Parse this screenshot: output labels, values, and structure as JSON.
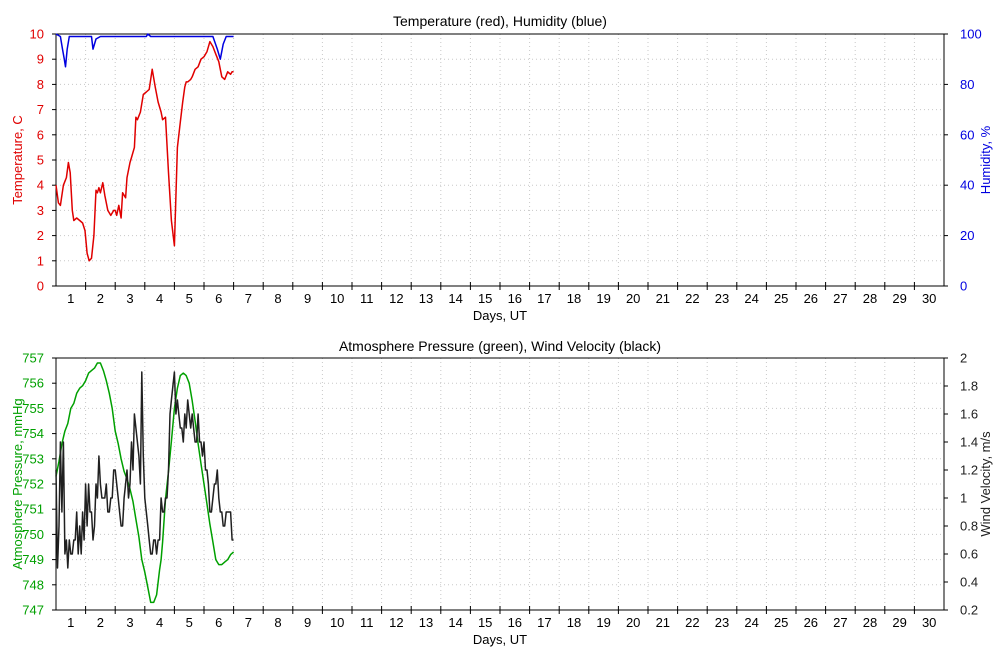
{
  "chart_data": [
    {
      "type": "line",
      "title": "Temperature (red), Humidity (blue)",
      "xlabel": "Days, UT",
      "ylabel": "Temperature, C",
      "ylabel_right": "Humidity, %",
      "xlim": [
        0,
        30
      ],
      "ylim": [
        0,
        10
      ],
      "ylim_right": [
        0,
        100
      ],
      "grid": true,
      "x_ticks": [
        "1",
        "2",
        "3",
        "4",
        "5",
        "6",
        "7",
        "8",
        "9",
        "10",
        "11",
        "12",
        "13",
        "14",
        "15",
        "16",
        "17",
        "18",
        "19",
        "20",
        "21",
        "22",
        "23",
        "24",
        "25",
        "26",
        "27",
        "28",
        "29",
        "30"
      ],
      "y_ticks": [
        0,
        1,
        2,
        3,
        4,
        5,
        6,
        7,
        8,
        9,
        10
      ],
      "y_ticks_right": [
        0,
        20,
        40,
        60,
        80,
        100
      ],
      "colors": {
        "left": "#e00000",
        "right": "#0000e0"
      },
      "series": [
        {
          "name": "Temperature (red)",
          "axis": "left",
          "color": "#e00000",
          "x": [
            0.0,
            0.08,
            0.15,
            0.25,
            0.35,
            0.42,
            0.48,
            0.55,
            0.6,
            0.7,
            0.8,
            0.9,
            0.98,
            1.05,
            1.12,
            1.2,
            1.28,
            1.35,
            1.4,
            1.45,
            1.5,
            1.58,
            1.65,
            1.75,
            1.85,
            1.95,
            2.0,
            2.05,
            2.12,
            2.2,
            2.25,
            2.35,
            2.4,
            2.5,
            2.55,
            2.65,
            2.7,
            2.75,
            2.85,
            2.95,
            3.05,
            3.15,
            3.25,
            3.35,
            3.45,
            3.55,
            3.6,
            3.7,
            3.8,
            3.9,
            4.0,
            4.1,
            4.2,
            4.28,
            4.35,
            4.4,
            4.45,
            4.55,
            4.6,
            4.7,
            4.8,
            4.9,
            5.0,
            5.1,
            5.2,
            5.3,
            5.4,
            5.5,
            5.55,
            5.6,
            5.7,
            5.8,
            5.9,
            5.95,
            6.0
          ],
          "y": [
            4.0,
            3.3,
            3.2,
            4.0,
            4.3,
            4.9,
            4.5,
            3.0,
            2.6,
            2.7,
            2.6,
            2.5,
            2.2,
            1.3,
            1.0,
            1.1,
            2.0,
            3.8,
            3.7,
            3.9,
            3.7,
            4.1,
            3.6,
            3.0,
            2.8,
            3.0,
            3.0,
            2.8,
            3.2,
            2.7,
            3.7,
            3.5,
            4.3,
            4.9,
            5.1,
            5.5,
            6.7,
            6.6,
            6.9,
            7.6,
            7.7,
            7.8,
            8.6,
            7.9,
            7.3,
            6.9,
            6.6,
            6.7,
            4.5,
            2.6,
            1.6,
            5.5,
            6.5,
            7.3,
            7.9,
            8.1,
            8.1,
            8.2,
            8.3,
            8.6,
            8.7,
            9.0,
            9.1,
            9.3,
            9.7,
            9.5,
            9.2,
            8.9,
            8.6,
            8.3,
            8.2,
            8.5,
            8.4,
            8.5,
            8.5
          ]
        },
        {
          "name": "Humidity (blue)",
          "axis": "right",
          "color": "#0000e0",
          "x": [
            0.0,
            0.15,
            0.22,
            0.28,
            0.32,
            0.38,
            0.45,
            0.55,
            1.0,
            1.05,
            1.1,
            1.15,
            1.2,
            1.25,
            1.35,
            1.5,
            1.9,
            2.0,
            2.05,
            2.1,
            2.15,
            2.25,
            2.35,
            2.5,
            2.75,
            3.0,
            3.05,
            3.1,
            3.2,
            4.5,
            4.8,
            5.0,
            5.3,
            5.45,
            5.55,
            5.65,
            5.75,
            5.8,
            5.9,
            5.95,
            6.0
          ],
          "y": [
            100,
            99,
            94,
            90,
            87,
            94,
            99,
            99,
            99,
            99,
            99,
            99,
            99,
            94,
            98,
            99,
            99,
            99,
            99,
            99,
            99,
            99,
            99,
            99,
            99,
            99,
            99,
            100,
            99,
            99,
            99,
            99,
            99,
            94,
            90,
            96,
            99,
            99,
            99,
            99,
            99
          ]
        }
      ]
    },
    {
      "type": "line",
      "title": "Atmosphere Pressure (green), Wind Velocity (black)",
      "xlabel": "Days, UT",
      "ylabel": "Atmosphere Pressure, mmHg",
      "ylabel_right": "Wind Velocity, m/s",
      "xlim": [
        0,
        30
      ],
      "ylim": [
        747,
        757
      ],
      "ylim_right": [
        0.2,
        2
      ],
      "grid": true,
      "x_ticks": [
        "1",
        "2",
        "3",
        "4",
        "5",
        "6",
        "7",
        "8",
        "9",
        "10",
        "11",
        "12",
        "13",
        "14",
        "15",
        "16",
        "17",
        "18",
        "19",
        "20",
        "21",
        "22",
        "23",
        "24",
        "25",
        "26",
        "27",
        "28",
        "29",
        "30"
      ],
      "y_ticks": [
        747,
        748,
        749,
        750,
        751,
        752,
        753,
        754,
        755,
        756,
        757
      ],
      "y_ticks_right": [
        "0.2",
        "0.4",
        "0.6",
        "0.8",
        "1",
        "1.2",
        "1.4",
        "1.6",
        "1.8",
        "2"
      ],
      "colors": {
        "left": "#00a000",
        "right": "#202020"
      },
      "series": [
        {
          "name": "Atmosphere Pressure (green)",
          "axis": "left",
          "color": "#00a000",
          "x": [
            0.0,
            0.1,
            0.2,
            0.3,
            0.4,
            0.5,
            0.6,
            0.7,
            0.8,
            0.9,
            1.0,
            1.1,
            1.2,
            1.3,
            1.4,
            1.5,
            1.6,
            1.7,
            1.8,
            1.9,
            2.0,
            2.1,
            2.2,
            2.3,
            2.4,
            2.5,
            2.6,
            2.7,
            2.8,
            2.9,
            3.0,
            3.1,
            3.2,
            3.3,
            3.4,
            3.5,
            3.55,
            3.6,
            3.7,
            3.8,
            3.9,
            4.0,
            4.1,
            4.2,
            4.3,
            4.4,
            4.5,
            4.6,
            4.7,
            4.8,
            4.9,
            5.0,
            5.1,
            5.2,
            5.3,
            5.4,
            5.5,
            5.6,
            5.7,
            5.8,
            5.9,
            6.0
          ],
          "y": [
            752.3,
            752.9,
            753.6,
            754.1,
            754.4,
            755.0,
            755.2,
            755.6,
            755.8,
            755.9,
            756.1,
            756.4,
            756.5,
            756.6,
            756.8,
            756.8,
            756.5,
            756.1,
            755.6,
            755.0,
            754.1,
            753.6,
            753.0,
            752.5,
            752.2,
            751.8,
            751.3,
            750.6,
            749.9,
            749.0,
            748.5,
            747.9,
            747.3,
            747.3,
            747.6,
            748.6,
            749.0,
            749.7,
            751.4,
            752.5,
            753.7,
            755.0,
            755.8,
            756.3,
            756.4,
            756.3,
            756.0,
            755.3,
            754.5,
            753.6,
            752.8,
            752.0,
            751.2,
            750.4,
            749.7,
            749.0,
            748.8,
            748.8,
            748.9,
            749.0,
            749.2,
            749.3
          ],
          "note": ""
        },
        {
          "name": "Wind Velocity (black)",
          "axis": "right",
          "color": "#202020",
          "x": [
            0.0,
            0.05,
            0.1,
            0.15,
            0.2,
            0.25,
            0.3,
            0.35,
            0.4,
            0.45,
            0.5,
            0.55,
            0.6,
            0.65,
            0.7,
            0.75,
            0.8,
            0.85,
            0.9,
            0.95,
            1.0,
            1.05,
            1.1,
            1.15,
            1.2,
            1.25,
            1.3,
            1.35,
            1.4,
            1.45,
            1.5,
            1.55,
            1.6,
            1.65,
            1.7,
            1.75,
            1.8,
            1.85,
            1.9,
            1.95,
            2.0,
            2.05,
            2.1,
            2.15,
            2.2,
            2.25,
            2.3,
            2.35,
            2.4,
            2.45,
            2.5,
            2.55,
            2.6,
            2.65,
            2.7,
            2.75,
            2.8,
            2.85,
            2.9,
            2.95,
            3.0,
            3.05,
            3.1,
            3.15,
            3.2,
            3.25,
            3.3,
            3.35,
            3.4,
            3.45,
            3.5,
            3.55,
            3.6,
            3.65,
            3.7,
            3.75,
            3.8,
            3.85,
            3.9,
            3.95,
            4.0,
            4.05,
            4.1,
            4.15,
            4.2,
            4.25,
            4.3,
            4.35,
            4.4,
            4.45,
            4.5,
            4.55,
            4.6,
            4.65,
            4.7,
            4.75,
            4.8,
            4.85,
            4.9,
            4.95,
            5.0,
            5.05,
            5.1,
            5.15,
            5.2,
            5.25,
            5.3,
            5.35,
            5.4,
            5.45,
            5.5,
            5.55,
            5.6,
            5.65,
            5.7,
            5.75,
            5.8,
            5.85,
            5.9,
            5.95,
            6.0
          ],
          "y": [
            1.2,
            0.5,
            0.8,
            1.4,
            0.9,
            1.4,
            0.6,
            0.7,
            0.5,
            0.7,
            0.6,
            0.6,
            0.7,
            0.7,
            0.9,
            0.6,
            0.8,
            0.6,
            0.9,
            0.7,
            1.1,
            0.8,
            1.1,
            0.9,
            0.9,
            0.7,
            0.8,
            1.1,
            1.0,
            1.3,
            1.1,
            1.0,
            1.0,
            1.0,
            1.1,
            0.9,
            0.9,
            1.0,
            1.0,
            1.2,
            1.2,
            1.1,
            1.0,
            0.9,
            0.8,
            0.8,
            1.0,
            1.1,
            1.2,
            1.0,
            1.1,
            1.4,
            1.2,
            1.6,
            1.5,
            1.4,
            1.3,
            1.1,
            1.9,
            1.3,
            1.0,
            0.9,
            0.8,
            0.7,
            0.6,
            0.6,
            0.7,
            0.7,
            0.6,
            0.7,
            0.7,
            1.0,
            0.9,
            0.9,
            1.0,
            1.0,
            1.2,
            1.6,
            1.7,
            1.8,
            1.9,
            1.6,
            1.7,
            1.6,
            1.5,
            1.5,
            1.4,
            1.6,
            1.5,
            1.7,
            1.6,
            1.5,
            1.6,
            1.5,
            1.4,
            1.4,
            1.6,
            1.4,
            1.4,
            1.3,
            1.4,
            1.2,
            1.2,
            1.1,
            0.9,
            0.9,
            1.0,
            1.1,
            1.1,
            1.2,
            1.0,
            0.9,
            0.9,
            0.8,
            0.8,
            0.9,
            0.9,
            0.9,
            0.9,
            0.7,
            0.7
          ]
        }
      ]
    }
  ]
}
